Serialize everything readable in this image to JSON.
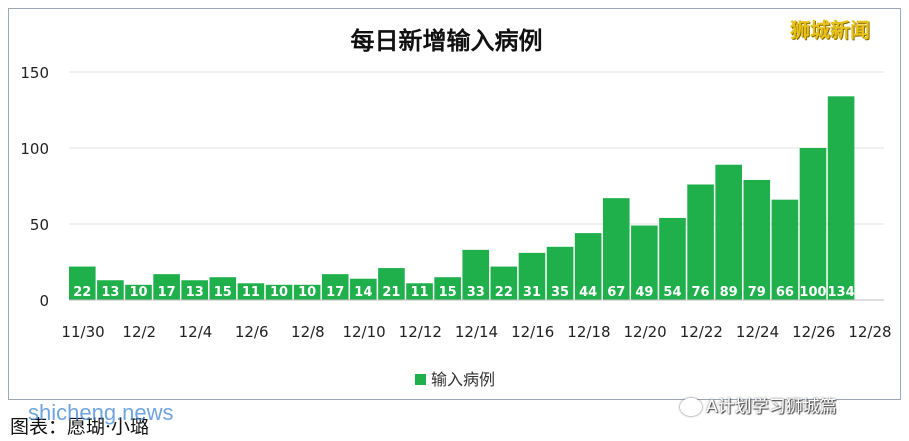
{
  "chart_data": {
    "type": "bar",
    "title": "每日新增输入病例",
    "categories": [
      "11/30",
      "12/1",
      "12/2",
      "12/3",
      "12/4",
      "12/5",
      "12/6",
      "12/7",
      "12/8",
      "12/9",
      "12/10",
      "12/11",
      "12/12",
      "12/13",
      "12/14",
      "12/15",
      "12/16",
      "12/17",
      "12/18",
      "12/19",
      "12/20",
      "12/21",
      "12/22",
      "12/23",
      "12/24",
      "12/25",
      "12/26",
      "12/27"
    ],
    "x_tick_labels": [
      "11/30",
      "12/2",
      "12/4",
      "12/6",
      "12/8",
      "12/10",
      "12/12",
      "12/14",
      "12/16",
      "12/18",
      "12/20",
      "12/22",
      "12/24",
      "12/26",
      "12/28"
    ],
    "series": [
      {
        "name": "输入病例",
        "values": [
          22,
          13,
          10,
          17,
          13,
          15,
          11,
          10,
          10,
          17,
          14,
          21,
          11,
          15,
          33,
          22,
          31,
          35,
          44,
          67,
          49,
          54,
          76,
          89,
          79,
          66,
          100,
          134
        ]
      }
    ],
    "ylim": [
      0,
      150
    ],
    "y_ticks": [
      0,
      50,
      100,
      150
    ],
    "grid": true,
    "legend": "bottom-center",
    "bar_color": "#1fb04c"
  },
  "watermark_top": "狮城新闻",
  "footer_source": "图表：愿瑚·小璐",
  "footer_left_watermark": "shicheng.news",
  "footer_right_watermark": "A计划学习狮城篇"
}
